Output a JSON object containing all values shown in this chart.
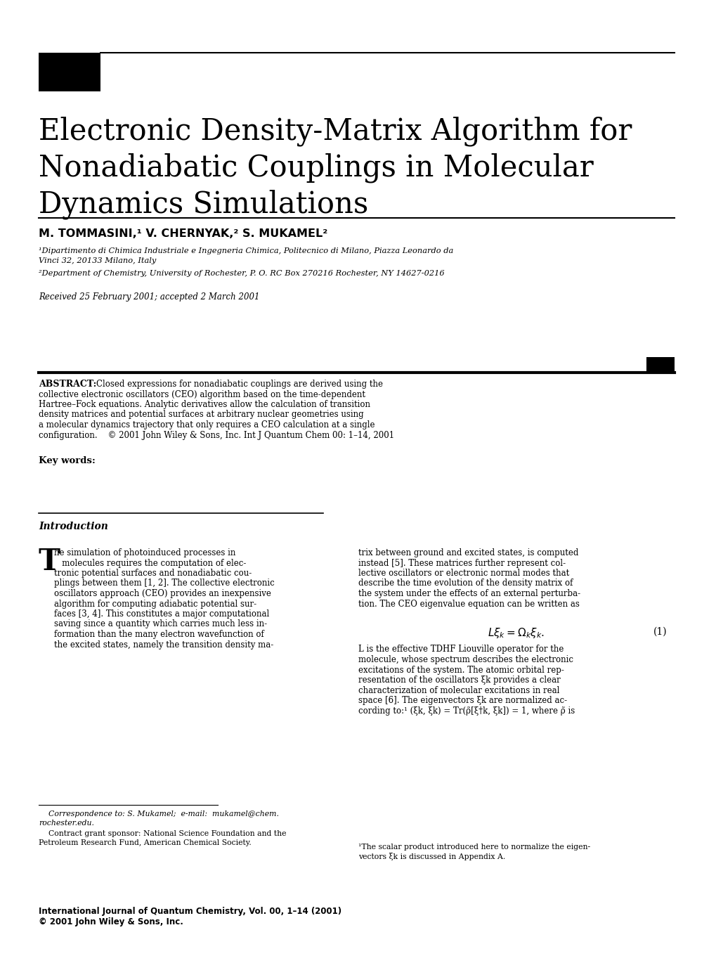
{
  "bg_color": "#ffffff",
  "title_line1": "Electronic Density-Matrix Algorithm for",
  "title_line2": "Nonadiabatic Couplings in Molecular",
  "title_line3": "Dynamics Simulations",
  "authors": "M. TOMMASINI,¹ V. CHERNYAK,² S. MUKAMEL²",
  "affil1": "¹Dipartimento di Chimica Industriale e Ingegneria Chimica, Politecnico di Milano, Piazza Leonardo da\nVinci 32, 20133 Milano, Italy",
  "affil2": "²Department of Chemistry, University of Rochester, P. O. RC Box 270216 Rochester, NY 14627-0216",
  "received": "Received 25 February 2001; accepted 2 March 2001",
  "abstract_bold": "ABSTRACT:",
  "abstract_normal": " Closed expressions for nonadiabatic couplings are derived using the collective electronic oscillators (CEO) algorithm based on the time-dependent Hartree–Fock equations. Analytic derivatives allow the calculation of transition density matrices and potential surfaces at arbitrary nuclear geometries using a molecular dynamics trajectory that only requires a CEO calculation at a single configuration.    © 2001 John Wiley & Sons, Inc. Int J Quantum Chem 00: 1–14, 2001",
  "keywords_label": "Key words:",
  "intro_heading": "Introduction",
  "footnote_corr_line1": "    Correspondence to: S. Mukamel;  e-mail:  mukamel@chem.",
  "footnote_corr_line2": "rochester.edu.",
  "footnote_grant_line1": "    Contract grant sponsor: National Science Foundation and the",
  "footnote_grant_line2": "Petroleum Research Fund, American Chemical Society.",
  "footnote1_line1": "¹The scalar product introduced here to normalize the eigen-",
  "footnote1_line2": "vectors ξk is discussed in Appendix A.",
  "journal_line1": "International Journal of Quantum Chemistry, Vol. 00, 1–14 (2001)",
  "journal_line2": "© 2001 John Wiley & Sons, Inc."
}
